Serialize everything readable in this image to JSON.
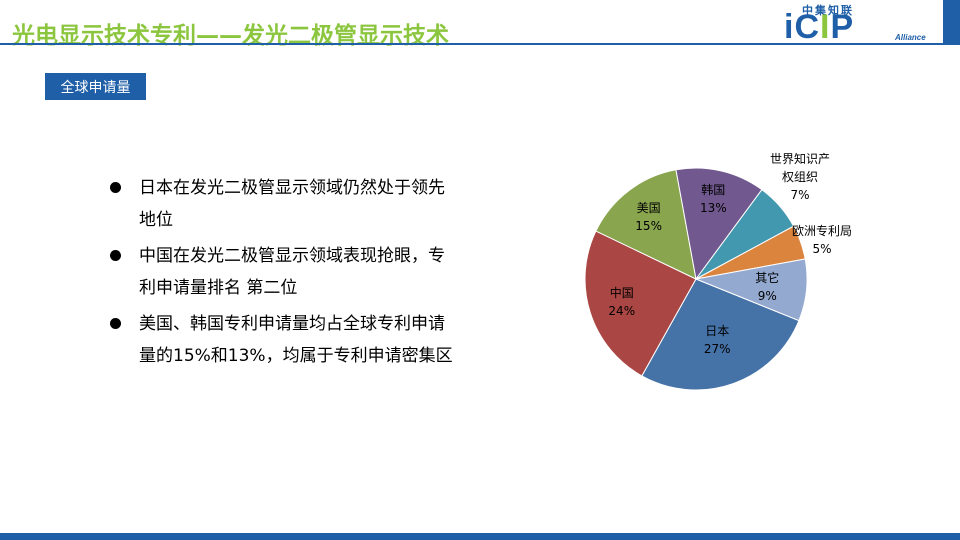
{
  "header": {
    "title": "光电显示技术专利——发光二极管显示技术",
    "logo_cn": "中集知联",
    "logo_letters": [
      "i",
      "C",
      "I",
      "P"
    ],
    "logo_sub": "Alliance"
  },
  "section_tag": "全球申请量",
  "bullets": [
    "日本在发光二极管显示领域仍然处于领先地位",
    "中国在发光二极管显示领域表现抢眼，专利申请量排名 第二位",
    "美国、韩国专利申请量均占全球专利申请量的15%和13%，均属于专利申请密集区"
  ],
  "colors": {
    "brand_blue": "#1f5fa8",
    "brand_green": "#8cc63f"
  },
  "chart_data": {
    "type": "pie",
    "slices": [
      {
        "name": "日本",
        "value": 27,
        "label": "27%",
        "color": "#4572a7"
      },
      {
        "name": "中国",
        "value": 24,
        "label": "24%",
        "color": "#aa4643"
      },
      {
        "name": "美国",
        "value": 15,
        "label": "15%",
        "color": "#89a54e"
      },
      {
        "name": "韩国",
        "value": 13,
        "label": "13%",
        "color": "#71588f"
      },
      {
        "name": "世界知识产权组织",
        "value": 7,
        "label": "7%",
        "color": "#4198af"
      },
      {
        "name": "欧洲专利局",
        "value": 5,
        "label": "5%",
        "color": "#db843d"
      },
      {
        "name": "其它",
        "value": 9,
        "label": "9%",
        "color": "#93a9cf"
      }
    ]
  }
}
